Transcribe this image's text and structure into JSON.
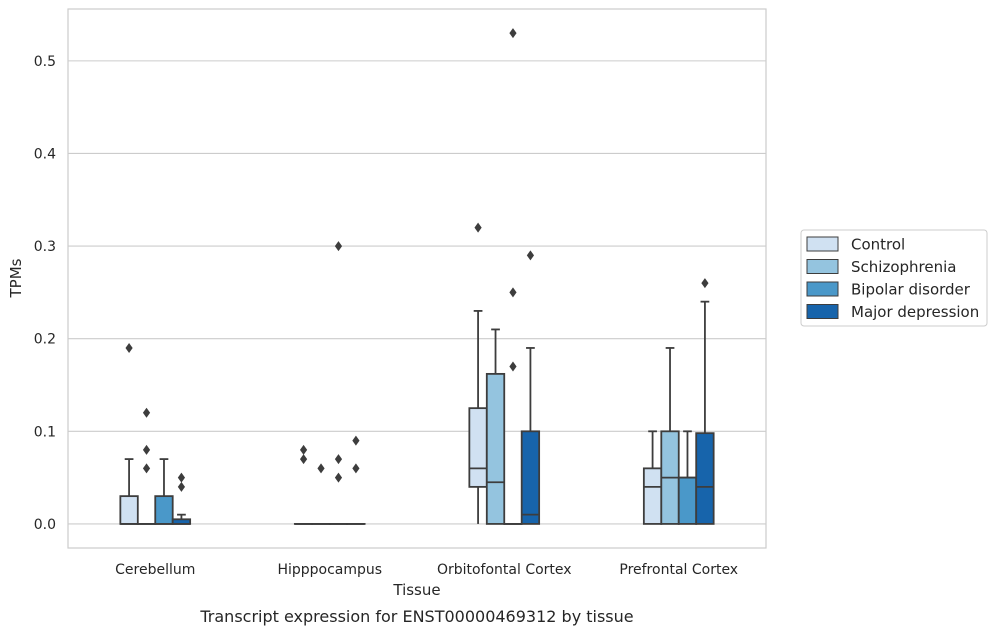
{
  "chart_data": {
    "type": "box",
    "title": "",
    "caption": "Transcript expression for ENST00000469312 by tissue",
    "xlabel": "Tissue",
    "ylabel": "TPMs",
    "ylim": [
      -0.026,
      0.556
    ],
    "yticks": [
      "0.0",
      "0.1",
      "0.2",
      "0.3",
      "0.4",
      "0.5"
    ],
    "ytick_values": [
      0.0,
      0.1,
      0.2,
      0.3,
      0.4,
      0.5
    ],
    "grid": true,
    "legend_position": "right",
    "categories": [
      "Cerebellum",
      "Hipppocampus",
      "Orbitofontal Cortex",
      "Prefrontal Cortex"
    ],
    "series": [
      {
        "name": "Control",
        "color": "#d0e1f2",
        "boxes": [
          {
            "whislo": 0.0,
            "q1": 0.0,
            "med": 0.0,
            "q3": 0.03,
            "whishi": 0.07,
            "fliers": [
              0.19
            ]
          },
          {
            "whislo": 0.0,
            "q1": 0.0,
            "med": 0.0,
            "q3": 0.0,
            "whishi": 0.0,
            "fliers": [
              0.07,
              0.08
            ]
          },
          {
            "whislo": 0.0,
            "q1": 0.04,
            "med": 0.06,
            "q3": 0.125,
            "whishi": 0.23,
            "fliers": [
              0.32
            ]
          },
          {
            "whislo": 0.0,
            "q1": 0.0,
            "med": 0.04,
            "q3": 0.06,
            "whishi": 0.1,
            "fliers": []
          }
        ]
      },
      {
        "name": "Schizophrenia",
        "color": "#94c4df",
        "boxes": [
          {
            "whislo": 0.0,
            "q1": 0.0,
            "med": 0.0,
            "q3": 0.0,
            "whishi": 0.0,
            "fliers": [
              0.06,
              0.08,
              0.12
            ]
          },
          {
            "whislo": 0.0,
            "q1": 0.0,
            "med": 0.0,
            "q3": 0.0,
            "whishi": 0.0,
            "fliers": [
              0.06
            ]
          },
          {
            "whislo": 0.0,
            "q1": 0.0,
            "med": 0.045,
            "q3": 0.162,
            "whishi": 0.21,
            "fliers": []
          },
          {
            "whislo": 0.0,
            "q1": 0.0,
            "med": 0.05,
            "q3": 0.1,
            "whishi": 0.19,
            "fliers": []
          }
        ]
      },
      {
        "name": "Bipolar disorder",
        "color": "#4a98c9",
        "boxes": [
          {
            "whislo": 0.0,
            "q1": 0.0,
            "med": 0.0,
            "q3": 0.03,
            "whishi": 0.07,
            "fliers": []
          },
          {
            "whislo": 0.0,
            "q1": 0.0,
            "med": 0.0,
            "q3": 0.0,
            "whishi": 0.0,
            "fliers": [
              0.05,
              0.07,
              0.3
            ]
          },
          {
            "whislo": 0.0,
            "q1": 0.0,
            "med": 0.0,
            "q3": 0.0,
            "whishi": 0.0,
            "fliers": [
              0.17,
              0.25,
              0.53
            ]
          },
          {
            "whislo": 0.0,
            "q1": 0.0,
            "med": 0.05,
            "q3": 0.05,
            "whishi": 0.1,
            "fliers": []
          }
        ]
      },
      {
        "name": "Major depression",
        "color": "#1764ab",
        "boxes": [
          {
            "whislo": 0.0,
            "q1": 0.0,
            "med": 0.0,
            "q3": 0.005,
            "whishi": 0.01,
            "fliers": [
              0.04,
              0.05
            ]
          },
          {
            "whislo": 0.0,
            "q1": 0.0,
            "med": 0.0,
            "q3": 0.0,
            "whishi": 0.0,
            "fliers": [
              0.06,
              0.09
            ]
          },
          {
            "whislo": 0.0,
            "q1": 0.0,
            "med": 0.01,
            "q3": 0.1,
            "whishi": 0.19,
            "fliers": [
              0.29
            ]
          },
          {
            "whislo": 0.0,
            "q1": 0.0,
            "med": 0.04,
            "q3": 0.098,
            "whishi": 0.24,
            "fliers": [
              0.26
            ]
          }
        ]
      }
    ]
  }
}
